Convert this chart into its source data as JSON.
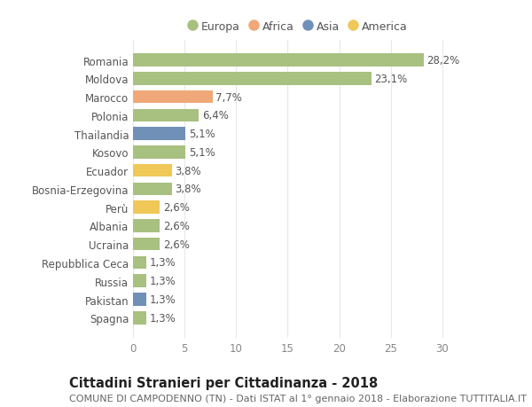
{
  "countries": [
    "Romania",
    "Moldova",
    "Marocco",
    "Polonia",
    "Thailandia",
    "Kosovo",
    "Ecuador",
    "Bosnia-Erzegovina",
    "Perù",
    "Albania",
    "Ucraina",
    "Repubblica Ceca",
    "Russia",
    "Pakistan",
    "Spagna"
  ],
  "values": [
    28.2,
    23.1,
    7.7,
    6.4,
    5.1,
    5.1,
    3.8,
    3.8,
    2.6,
    2.6,
    2.6,
    1.3,
    1.3,
    1.3,
    1.3
  ],
  "labels": [
    "28,2%",
    "23,1%",
    "7,7%",
    "6,4%",
    "5,1%",
    "5,1%",
    "3,8%",
    "3,8%",
    "2,6%",
    "2,6%",
    "2,6%",
    "1,3%",
    "1,3%",
    "1,3%",
    "1,3%"
  ],
  "colors": [
    "#a8c080",
    "#a8c080",
    "#f0a878",
    "#a8c080",
    "#7090b8",
    "#a8c080",
    "#f0c858",
    "#a8c080",
    "#f0c858",
    "#a8c080",
    "#a8c080",
    "#a8c080",
    "#a8c080",
    "#7090b8",
    "#a8c080"
  ],
  "legend_labels": [
    "Europa",
    "Africa",
    "Asia",
    "America"
  ],
  "legend_colors": [
    "#a8c080",
    "#f0a878",
    "#7090b8",
    "#f0c858"
  ],
  "title": "Cittadini Stranieri per Cittadinanza - 2018",
  "subtitle": "COMUNE DI CAMPODENNO (TN) - Dati ISTAT al 1° gennaio 2018 - Elaborazione TUTTITALIA.IT",
  "xlim": [
    0,
    32
  ],
  "xticks": [
    0,
    5,
    10,
    15,
    20,
    25,
    30
  ],
  "background_color": "#ffffff",
  "grid_color": "#e8e8e8",
  "bar_height": 0.7,
  "title_fontsize": 10.5,
  "subtitle_fontsize": 8,
  "tick_fontsize": 8.5,
  "label_fontsize": 8.5,
  "legend_fontsize": 9
}
